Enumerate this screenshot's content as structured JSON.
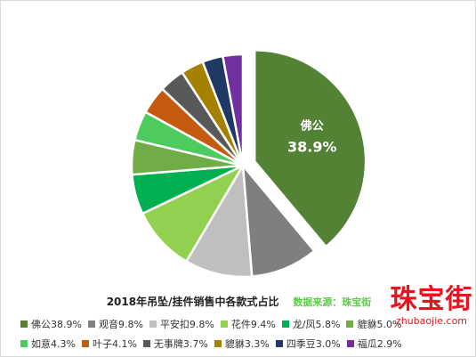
{
  "chart_data": {
    "type": "pie",
    "title": "2018年吊坠/挂件销售中各款式占比",
    "source": "数据来源：珠宝街",
    "slices": [
      {
        "label": "佛公",
        "value": 38.9,
        "value_text": "38.9%",
        "color": "#548235",
        "legend_row": 0
      },
      {
        "label": "观音",
        "value": 9.8,
        "value_text": "9.8%",
        "color": "#7f7f7f",
        "legend_row": 0
      },
      {
        "label": "平安扣",
        "value": 9.8,
        "value_text": "9.8%",
        "color": "#bfbfbf",
        "legend_row": 0
      },
      {
        "label": "花件",
        "value": 9.4,
        "value_text": "9.4%",
        "color": "#92d050",
        "legend_row": 0
      },
      {
        "label": "龙/凤",
        "value": 5.8,
        "value_text": "5.8%",
        "color": "#00b050",
        "legend_row": 0
      },
      {
        "label": "貔貅",
        "value": 5.0,
        "value_text": "5.0%",
        "color": "#70ad47",
        "legend_row": 0
      },
      {
        "label": "如意",
        "value": 4.3,
        "value_text": "4.3%",
        "color": "#4ecb5f",
        "legend_row": 1
      },
      {
        "label": "叶子",
        "value": 4.1,
        "value_text": "4.1%",
        "color": "#c55a11",
        "legend_row": 1
      },
      {
        "label": "无事牌",
        "value": 3.7,
        "value_text": "3.7%",
        "color": "#595959",
        "legend_row": 1
      },
      {
        "label": "貔貅",
        "value": 3.3,
        "value_text": "3.3%",
        "color": "#a58100",
        "legend_row": 1
      },
      {
        "label": "四季豆",
        "value": 3.0,
        "value_text": "3.0%",
        "color": "#203864",
        "legend_row": 1
      },
      {
        "label": "福瓜",
        "value": 2.9,
        "value_text": "2.9%",
        "color": "#7030a0",
        "legend_row": 1
      }
    ],
    "data_labels": [
      {
        "label": "佛公",
        "value_text": "38.9%"
      }
    ],
    "legend_placement": "bottom"
  },
  "watermark": {
    "main": "珠宝街",
    "sub": "zhubaojie.com"
  }
}
